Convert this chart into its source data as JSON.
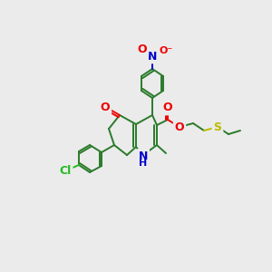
{
  "bg_color": "#ebebeb",
  "bond_color": "#2a7a2a",
  "atom_colors": {
    "N": "#0000cc",
    "O": "#ee0000",
    "S": "#bbbb00",
    "Cl": "#22bb22"
  },
  "font_size": 8,
  "figsize": [
    3.0,
    3.0
  ],
  "dpi": 100
}
